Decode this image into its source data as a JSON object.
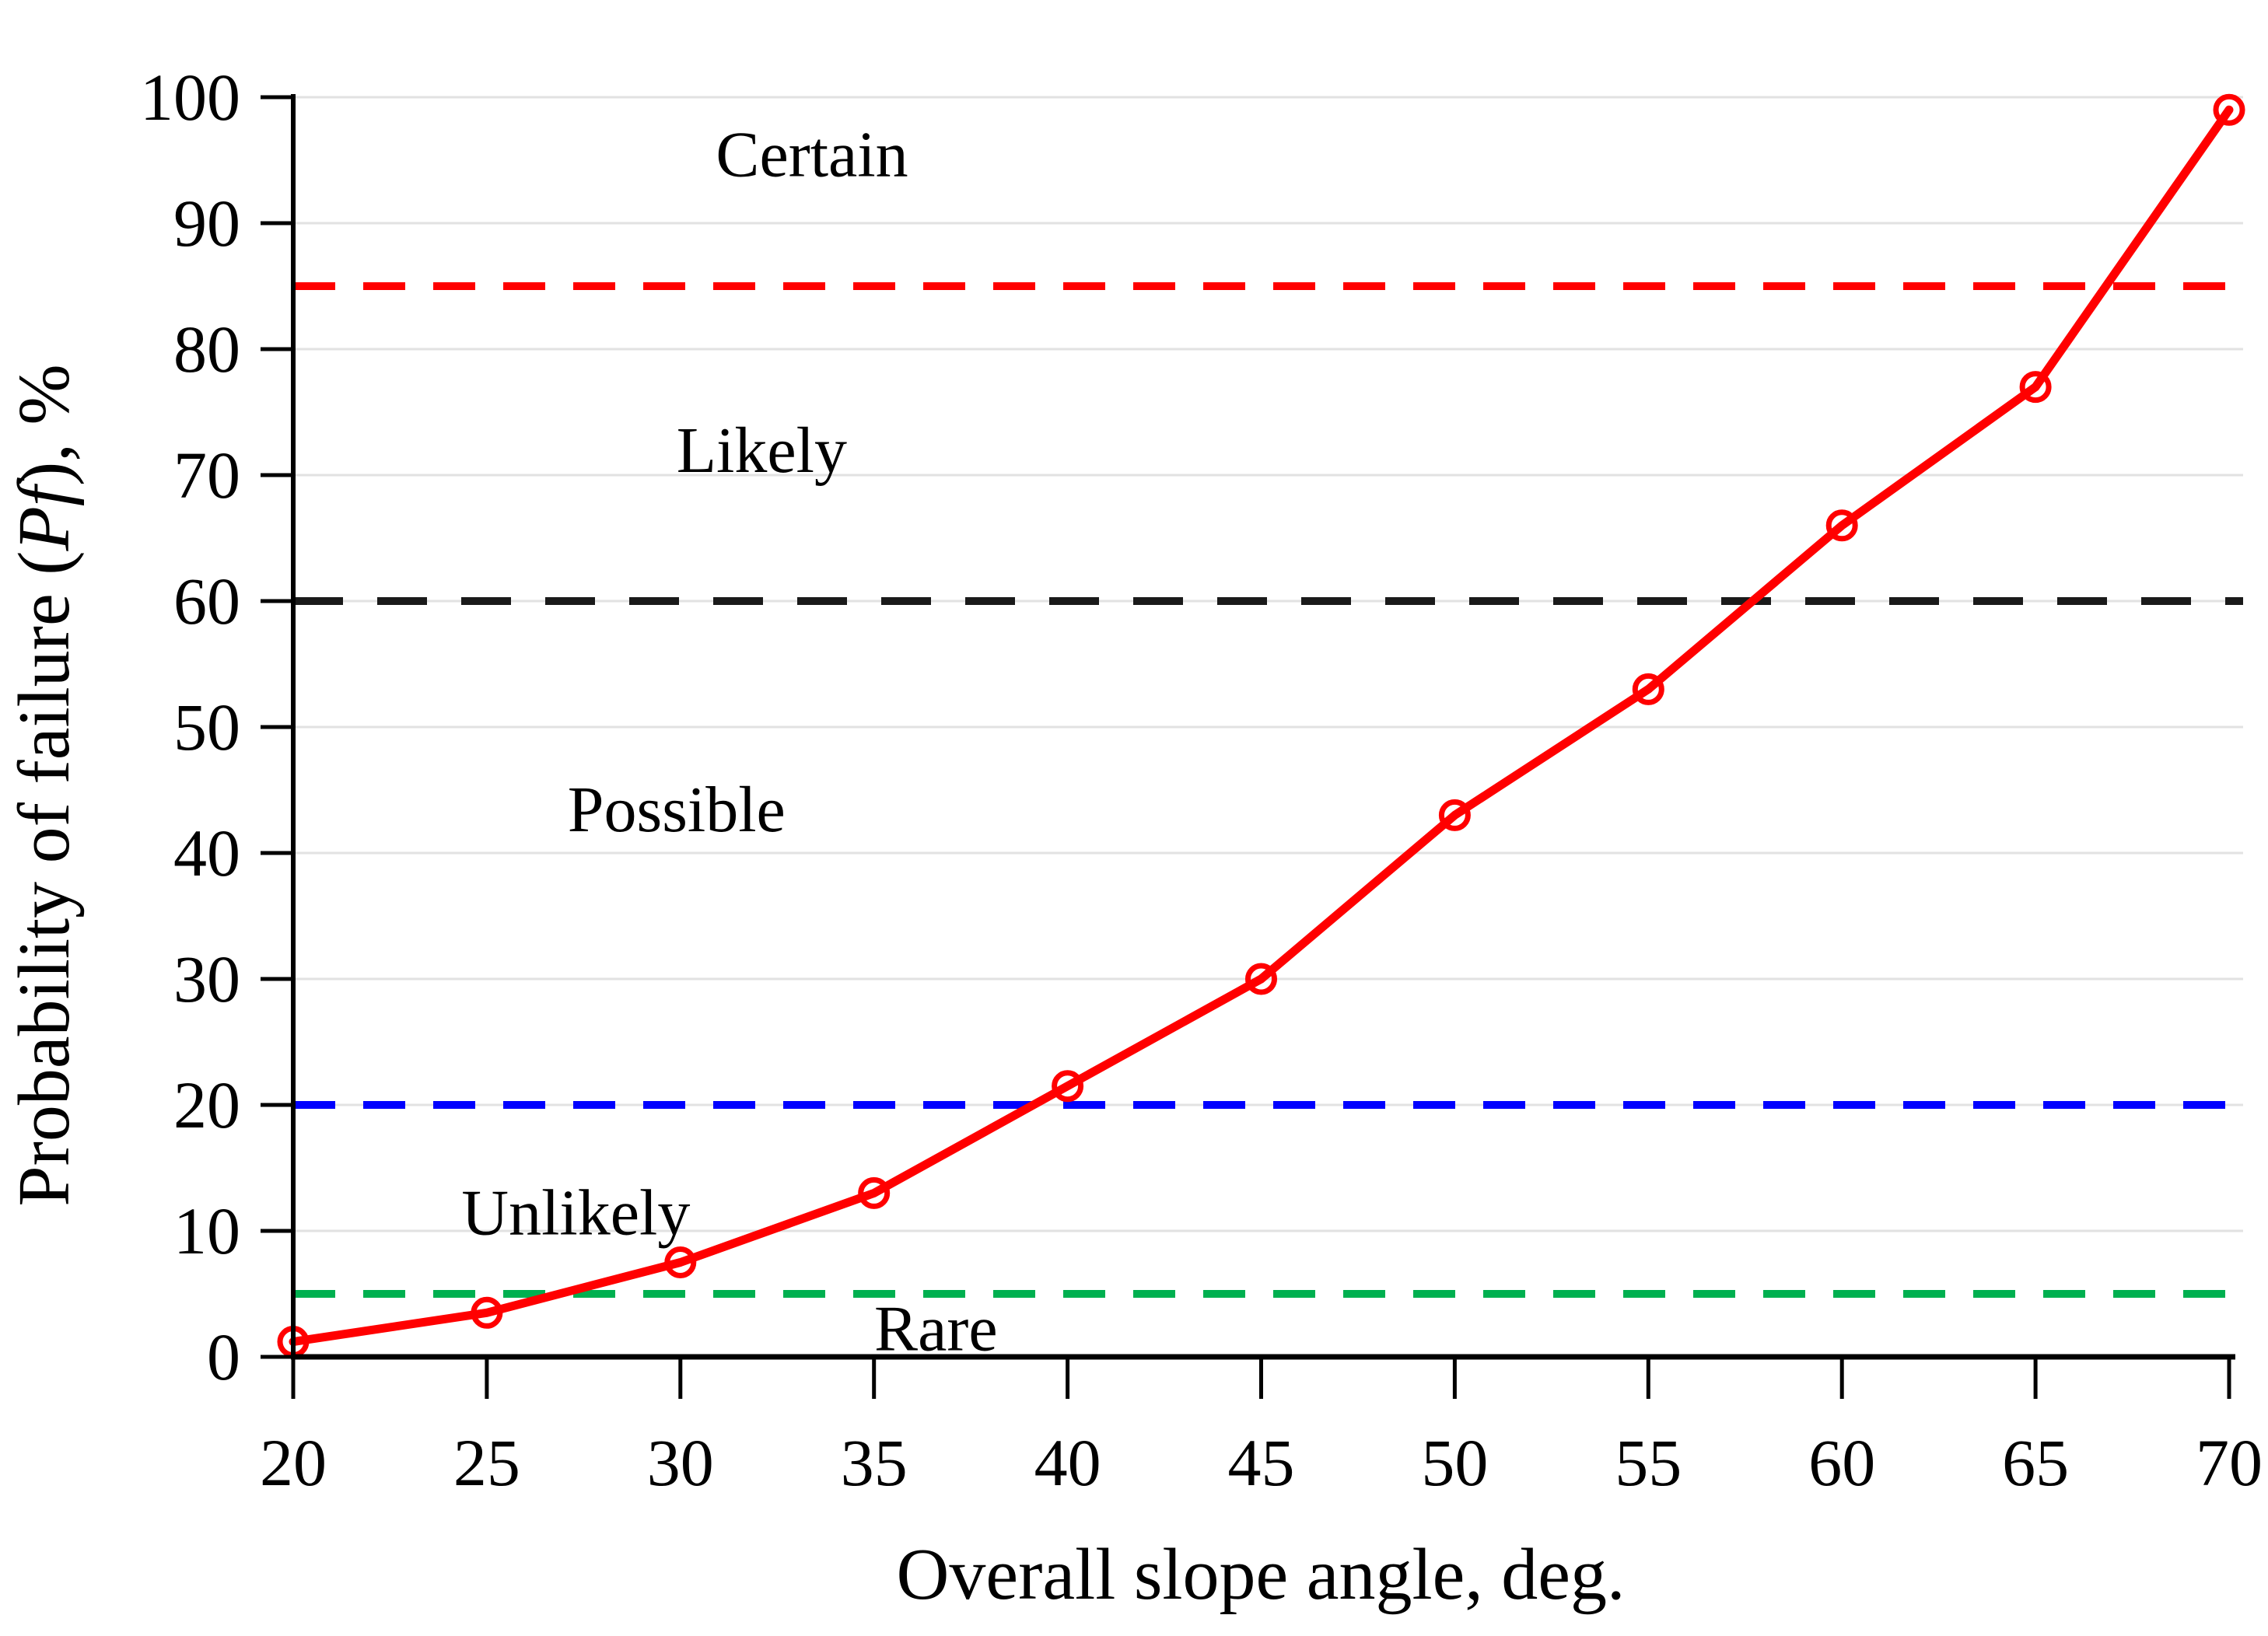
{
  "chart_data": {
    "type": "line",
    "title": "",
    "xlabel": "Overall slope angle, deg.",
    "ylabel_prefix": "Probability of failure (",
    "ylabel_italic": "Pf",
    "ylabel_suffix": "), %",
    "xlim": [
      20,
      70
    ],
    "ylim": [
      0,
      100
    ],
    "x_ticks": [
      20,
      25,
      30,
      35,
      40,
      45,
      50,
      55,
      60,
      65,
      70
    ],
    "y_ticks": [
      0,
      10,
      20,
      30,
      40,
      50,
      60,
      70,
      80,
      90,
      100
    ],
    "grid": "horizontal",
    "gridline_color": "#E2E2E2",
    "axis_color": "#000000",
    "legend_position": "none",
    "series": [
      {
        "name": "probability-of-failure-curve",
        "color": "#FF0000",
        "marker": "open-circle",
        "x": [
          20,
          25,
          30,
          35,
          40,
          45,
          50,
          55,
          60,
          65,
          70
        ],
        "y": [
          1.2,
          3.5,
          7.5,
          13,
          21.5,
          30,
          43,
          53,
          66,
          77,
          99
        ]
      }
    ],
    "threshold_lines": [
      {
        "name": "certain-threshold",
        "value": 85,
        "color": "#FF0000",
        "style": "dashed"
      },
      {
        "name": "likely-threshold",
        "value": 60,
        "color": "#1A1A1A",
        "style": "dashed"
      },
      {
        "name": "possible-threshold",
        "value": 20,
        "color": "#0000FF",
        "style": "dashed"
      },
      {
        "name": "rare-threshold",
        "value": 5,
        "color": "#00B050",
        "style": "dashed"
      }
    ],
    "region_labels": [
      {
        "text": "Certain",
        "x": 33.4,
        "y": 95.5
      },
      {
        "text": "Likely",
        "x": 32.1,
        "y": 72.0
      },
      {
        "text": "Possible",
        "x": 29.9,
        "y": 43.5
      },
      {
        "text": "Unlikely",
        "x": 27.3,
        "y": 11.5
      },
      {
        "text": "Rare",
        "x": 36.6,
        "y": 2.3
      }
    ]
  }
}
